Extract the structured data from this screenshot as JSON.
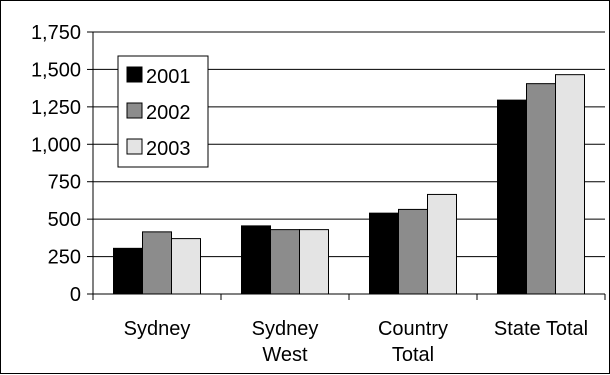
{
  "chart_data": {
    "type": "bar",
    "title": "",
    "xlabel": "",
    "ylabel": "",
    "ylim": [
      0,
      1750
    ],
    "yticks": [
      0,
      250,
      500,
      750,
      1000,
      1250,
      1500,
      1750
    ],
    "ytick_labels": [
      "0",
      "250",
      "500",
      "750",
      "1,000",
      "1,250",
      "1,500",
      "1,750"
    ],
    "grid": true,
    "legend_position": "top-left",
    "categories": [
      [
        "Sydney"
      ],
      [
        "Sydney",
        "West"
      ],
      [
        "Country",
        "Total"
      ],
      [
        "State Total"
      ]
    ],
    "series": [
      {
        "name": "2001",
        "color": "#000000",
        "values": [
          305,
          455,
          540,
          1295
        ]
      },
      {
        "name": "2002",
        "color": "#8c8c8c",
        "values": [
          415,
          430,
          565,
          1405
        ]
      },
      {
        "name": "2003",
        "color": "#e4e4e4",
        "values": [
          370,
          430,
          665,
          1465
        ]
      }
    ]
  }
}
